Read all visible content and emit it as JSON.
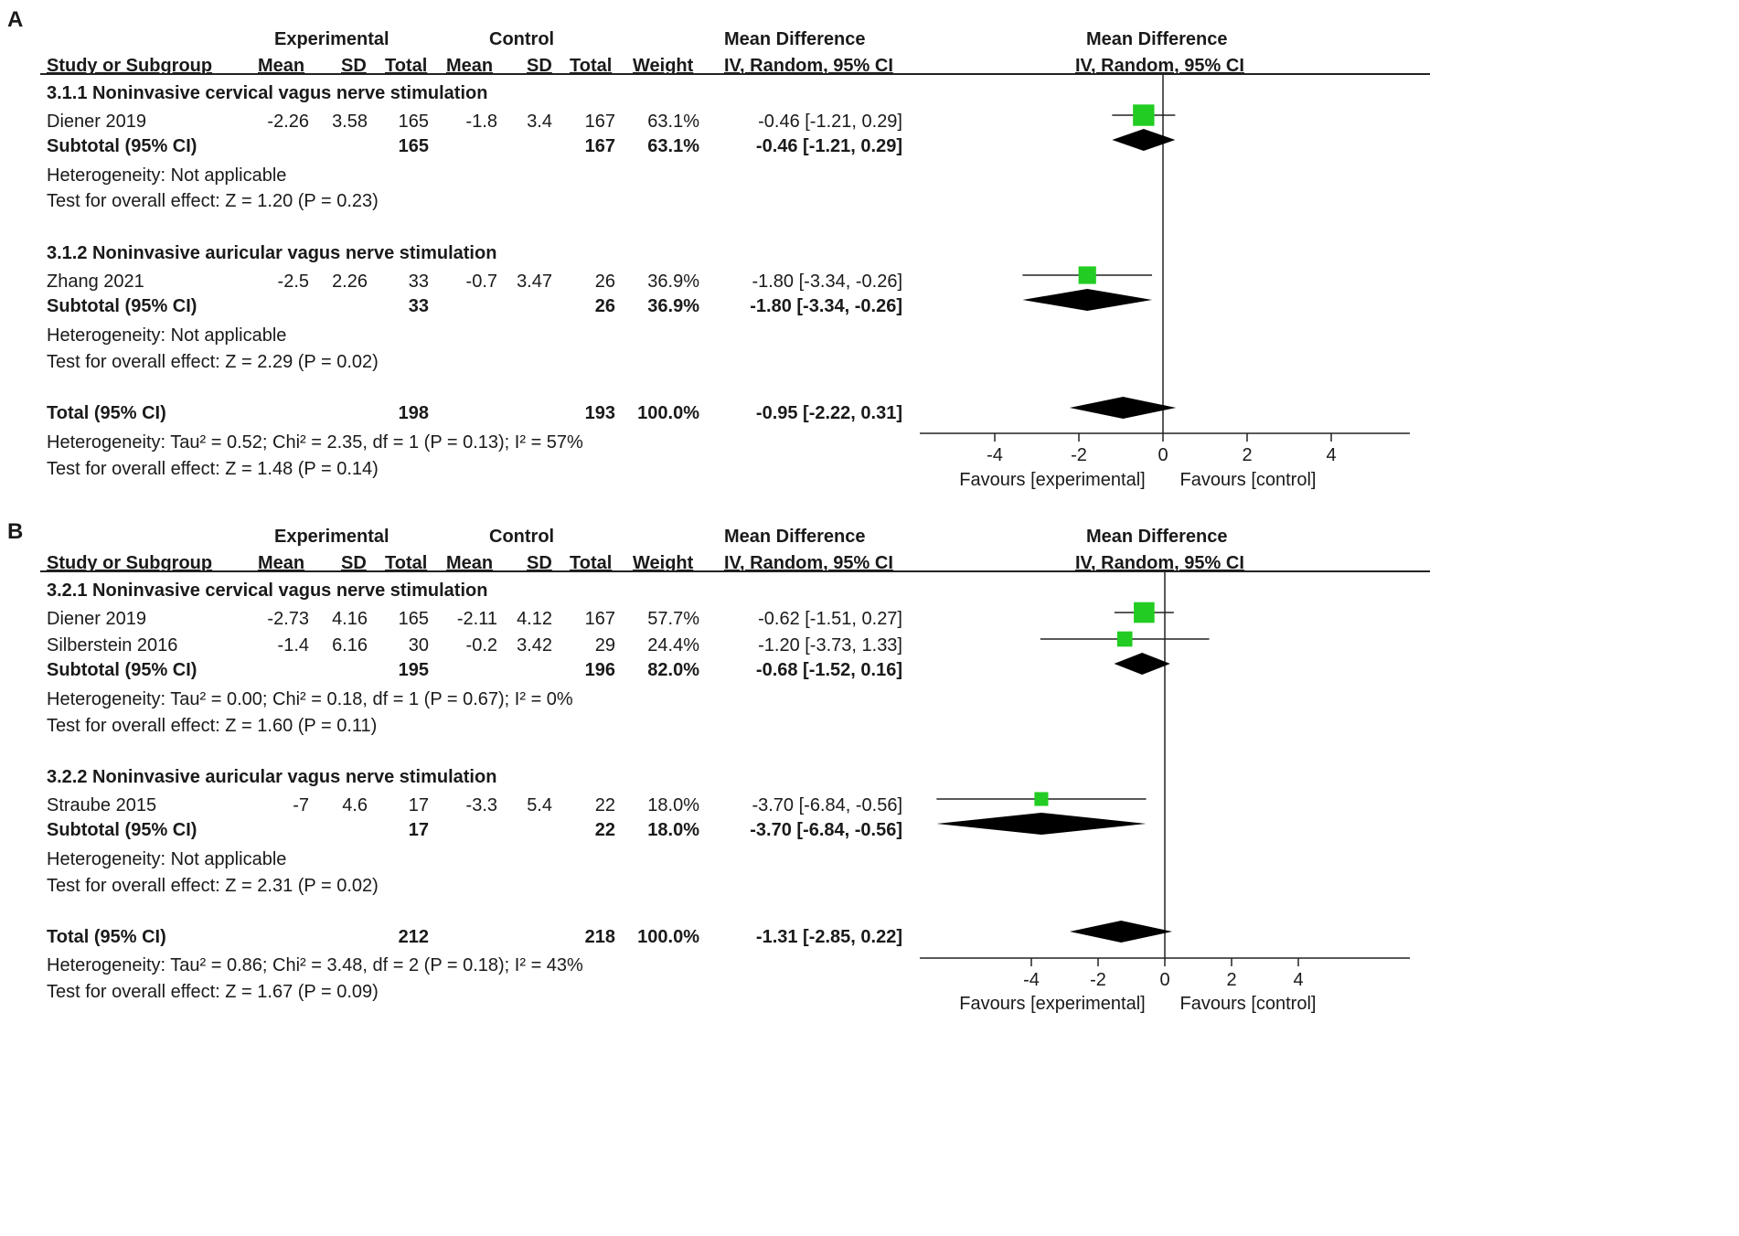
{
  "chart_data": {
    "type": "forest",
    "x_axis": {
      "ticks": [
        "-4",
        "-2",
        "0",
        "2",
        "4"
      ],
      "tick_values": [
        -4,
        -2,
        0,
        2,
        4
      ],
      "left_label": "Favours [experimental]",
      "right_label": "Favours [control]"
    },
    "marker_color": "#22cc22",
    "panels": [
      {
        "label": "A",
        "headers": {
          "experimental": "Experimental",
          "control": "Control",
          "md": "Mean Difference",
          "study": "Study or Subgroup",
          "mean": "Mean",
          "sd": "SD",
          "total": "Total",
          "weight": "Weight",
          "method": "IV, Random, 95% CI",
          "plot_title": "Mean Difference",
          "plot_method": "IV, Random, 95% CI"
        },
        "xlim": [
          -6,
          6
        ],
        "subgroups": [
          {
            "title": "3.1.1 Noninvasive cervical vagus nerve stimulation",
            "studies": [
              {
                "name": "Diener 2019",
                "e_mean": "-2.26",
                "e_sd": "3.58",
                "e_total": "165",
                "c_mean": "-1.8",
                "c_sd": "3.4",
                "c_total": "167",
                "weight": "63.1%",
                "ci_text": "-0.46 [-1.21, 0.29]",
                "md": -0.46,
                "lo": -1.21,
                "hi": 0.29,
                "w": 63.1
              }
            ],
            "subtotal": {
              "label": "Subtotal (95% CI)",
              "e_total": "165",
              "c_total": "167",
              "weight": "63.1%",
              "ci_text": "-0.46 [-1.21, 0.29]",
              "md": -0.46,
              "lo": -1.21,
              "hi": 0.29
            },
            "heterogeneity": "Heterogeneity: Not applicable",
            "overall": "Test for overall effect: Z = 1.20 (P = 0.23)"
          },
          {
            "title": "3.1.2 Noninvasive auricular vagus nerve stimulation",
            "studies": [
              {
                "name": "Zhang 2021",
                "e_mean": "-2.5",
                "e_sd": "2.26",
                "e_total": "33",
                "c_mean": "-0.7",
                "c_sd": "3.47",
                "c_total": "26",
                "weight": "36.9%",
                "ci_text": "-1.80 [-3.34, -0.26]",
                "md": -1.8,
                "lo": -3.34,
                "hi": -0.26,
                "w": 36.9
              }
            ],
            "subtotal": {
              "label": "Subtotal (95% CI)",
              "e_total": "33",
              "c_total": "26",
              "weight": "36.9%",
              "ci_text": "-1.80 [-3.34, -0.26]",
              "md": -1.8,
              "lo": -3.34,
              "hi": -0.26
            },
            "heterogeneity": "Heterogeneity: Not applicable",
            "overall": "Test for overall effect: Z = 2.29 (P = 0.02)"
          }
        ],
        "total": {
          "label": "Total (95% CI)",
          "e_total": "198",
          "c_total": "193",
          "weight": "100.0%",
          "ci_text": "-0.95 [-2.22, 0.31]",
          "md": -0.95,
          "lo": -2.22,
          "hi": 0.31
        },
        "heterogeneity": "Heterogeneity: Tau² = 0.52; Chi² = 2.35, df = 1 (P = 0.13); I² = 57%",
        "overall": "Test for overall effect: Z = 1.48 (P = 0.14)"
      },
      {
        "label": "B",
        "headers": {
          "experimental": "Experimental",
          "control": "Control",
          "md": "Mean Difference",
          "study": "Study or Subgroup",
          "mean": "Mean",
          "sd": "SD",
          "total": "Total",
          "weight": "Weight",
          "method": "IV, Random, 95% CI",
          "plot_title": "Mean Difference",
          "plot_method": "IV, Random, 95% CI"
        },
        "xlim": [
          -7,
          7
        ],
        "subgroups": [
          {
            "title": "3.2.1 Noninvasive cervical vagus nerve stimulation",
            "studies": [
              {
                "name": "Diener 2019",
                "e_mean": "-2.73",
                "e_sd": "4.16",
                "e_total": "165",
                "c_mean": "-2.11",
                "c_sd": "4.12",
                "c_total": "167",
                "weight": "57.7%",
                "ci_text": "-0.62 [-1.51, 0.27]",
                "md": -0.62,
                "lo": -1.51,
                "hi": 0.27,
                "w": 57.7
              },
              {
                "name": "Silberstein 2016",
                "e_mean": "-1.4",
                "e_sd": "6.16",
                "e_total": "30",
                "c_mean": "-0.2",
                "c_sd": "3.42",
                "c_total": "29",
                "weight": "24.4%",
                "ci_text": "-1.20 [-3.73, 1.33]",
                "md": -1.2,
                "lo": -3.73,
                "hi": 1.33,
                "w": 24.4
              }
            ],
            "subtotal": {
              "label": "Subtotal (95% CI)",
              "e_total": "195",
              "c_total": "196",
              "weight": "82.0%",
              "ci_text": "-0.68 [-1.52, 0.16]",
              "md": -0.68,
              "lo": -1.52,
              "hi": 0.16
            },
            "heterogeneity": "Heterogeneity: Tau² = 0.00; Chi² = 0.18, df = 1 (P = 0.67); I² = 0%",
            "overall": "Test for overall effect: Z = 1.60 (P = 0.11)"
          },
          {
            "title": "3.2.2 Noninvasive auricular vagus nerve stimulation",
            "studies": [
              {
                "name": "Straube 2015",
                "e_mean": "-7",
                "e_sd": "4.6",
                "e_total": "17",
                "c_mean": "-3.3",
                "c_sd": "5.4",
                "c_total": "22",
                "weight": "18.0%",
                "ci_text": "-3.70 [-6.84, -0.56]",
                "md": -3.7,
                "lo": -6.84,
                "hi": -0.56,
                "w": 18.0
              }
            ],
            "subtotal": {
              "label": "Subtotal (95% CI)",
              "e_total": "17",
              "c_total": "22",
              "weight": "18.0%",
              "ci_text": "-3.70 [-6.84, -0.56]",
              "md": -3.7,
              "lo": -6.84,
              "hi": -0.56
            },
            "heterogeneity": "Heterogeneity: Not applicable",
            "overall": "Test for overall effect: Z = 2.31 (P = 0.02)"
          }
        ],
        "total": {
          "label": "Total (95% CI)",
          "e_total": "212",
          "c_total": "218",
          "weight": "100.0%",
          "ci_text": "-1.31 [-2.85, 0.22]",
          "md": -1.31,
          "lo": -2.85,
          "hi": 0.22
        },
        "heterogeneity": "Heterogeneity: Tau² = 0.86; Chi² = 3.48, df = 2 (P = 0.18); I² = 43%",
        "overall": "Test for overall effect: Z = 1.67 (P = 0.09)"
      }
    ]
  }
}
